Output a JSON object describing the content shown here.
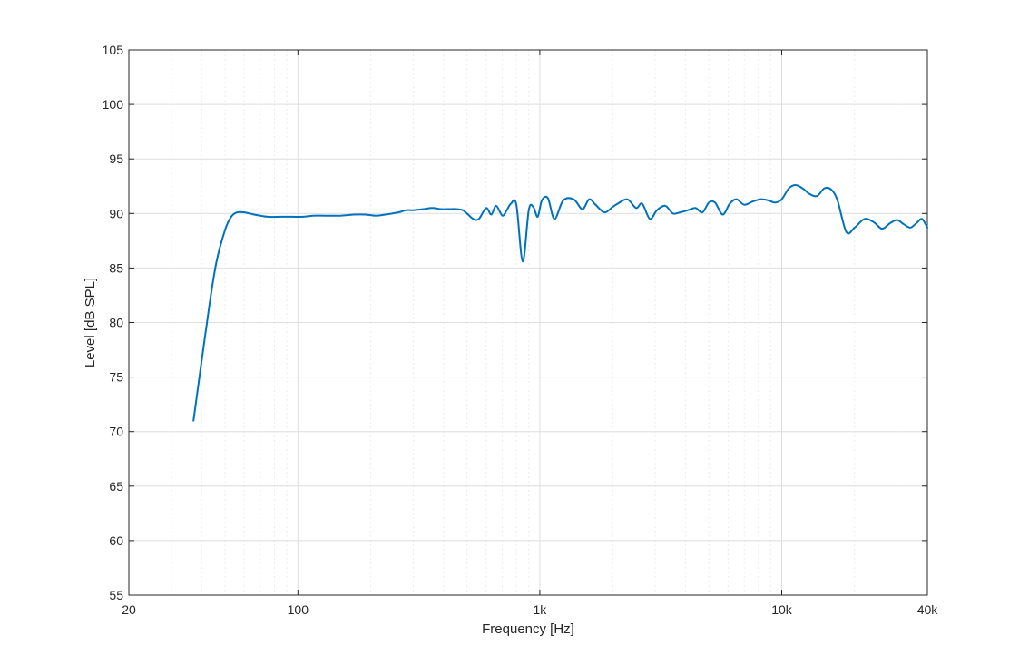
{
  "chart_data": {
    "type": "line",
    "title": "",
    "xlabel": "Frequency [Hz]",
    "ylabel": "Level [dB SPL]",
    "x_scale": "log",
    "xlim": [
      20,
      40000
    ],
    "ylim": [
      55,
      105
    ],
    "x_ticks": [
      {
        "value": 20,
        "label": "20"
      },
      {
        "value": 100,
        "label": "100"
      },
      {
        "value": 1000,
        "label": "1k"
      },
      {
        "value": 10000,
        "label": "10k"
      },
      {
        "value": 40000,
        "label": "40k"
      }
    ],
    "y_ticks": [
      55,
      60,
      65,
      70,
      75,
      80,
      85,
      90,
      95,
      100,
      105
    ],
    "grid": true,
    "color": "#0072BD",
    "series": [
      {
        "x": [
          37,
          40,
          43,
          46,
          50,
          53,
          56,
          60,
          66,
          75,
          85,
          95,
          105,
          115,
          130,
          150,
          170,
          190,
          210,
          230,
          260,
          280,
          300,
          330,
          360,
          390,
          420,
          450,
          480,
          500,
          530,
          560,
          600,
          630,
          660,
          700,
          730,
          760,
          800,
          850,
          900,
          940,
          980,
          1020,
          1080,
          1150,
          1250,
          1380,
          1500,
          1600,
          1700,
          1850,
          2000,
          2100,
          2300,
          2500,
          2650,
          2850,
          3050,
          3300,
          3550,
          3800,
          4100,
          4400,
          4700,
          5000,
          5300,
          5700,
          6100,
          6500,
          7000,
          7600,
          8200,
          8800,
          9400,
          10000,
          10700,
          11400,
          12200,
          13000,
          14000,
          15000,
          16000,
          17000,
          18500,
          20000,
          22000,
          24000,
          26000,
          28000,
          30000,
          32000,
          34000,
          36000,
          38000,
          40000
        ],
        "y": [
          71.0,
          76.5,
          81.5,
          85.5,
          88.5,
          89.7,
          90.1,
          90.1,
          89.9,
          89.7,
          89.7,
          89.7,
          89.7,
          89.8,
          89.8,
          89.8,
          89.9,
          89.9,
          89.8,
          89.9,
          90.1,
          90.3,
          90.3,
          90.4,
          90.5,
          90.4,
          90.4,
          90.4,
          90.3,
          90.0,
          89.5,
          89.5,
          90.5,
          89.9,
          90.7,
          89.8,
          90.3,
          90.9,
          90.8,
          85.6,
          90.3,
          90.6,
          89.7,
          91.2,
          91.4,
          89.5,
          91.2,
          91.3,
          90.4,
          91.3,
          90.8,
          90.1,
          90.6,
          90.9,
          91.3,
          90.5,
          90.9,
          89.5,
          90.3,
          90.7,
          90.0,
          90.1,
          90.3,
          90.5,
          90.1,
          91.0,
          91.0,
          89.9,
          90.9,
          91.3,
          90.8,
          91.1,
          91.3,
          91.2,
          91.0,
          91.3,
          92.3,
          92.6,
          92.3,
          91.8,
          91.6,
          92.3,
          92.2,
          91.2,
          88.3,
          88.7,
          89.5,
          89.2,
          88.6,
          89.1,
          89.4,
          89.0,
          88.7,
          89.1,
          89.5,
          88.7
        ]
      }
    ]
  }
}
